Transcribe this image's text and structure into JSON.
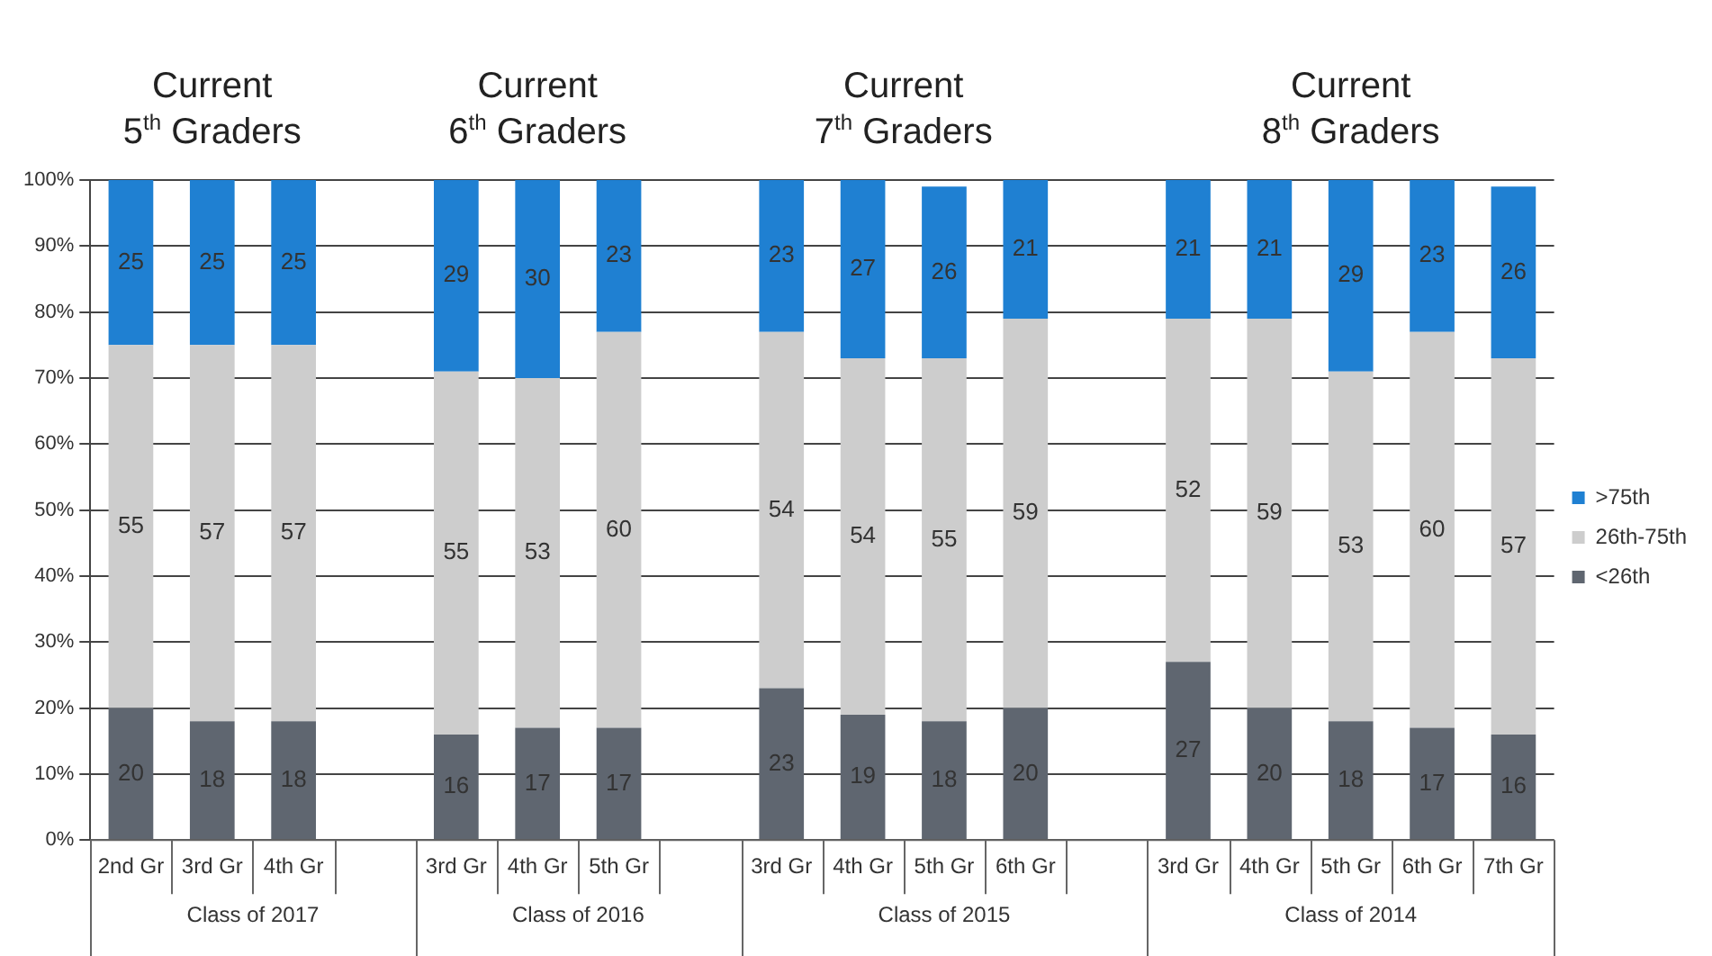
{
  "chart_data": {
    "type": "bar",
    "stacked": true,
    "categories": [
      "2nd Gr",
      "3rd Gr",
      "4th Gr",
      null,
      "3rd Gr",
      "4th Gr",
      "5th Gr",
      null,
      "3rd Gr",
      "4th Gr",
      "5th Gr",
      "6th Gr",
      null,
      "3rd Gr",
      "4th Gr",
      "5th Gr",
      "6th Gr",
      "7th Gr"
    ],
    "series": [
      {
        "name": "<26th",
        "color": "#5f6670",
        "values": [
          20,
          18,
          18,
          null,
          16,
          17,
          17,
          null,
          23,
          19,
          18,
          20,
          null,
          27,
          20,
          18,
          17,
          16
        ]
      },
      {
        "name": "26th-75th",
        "color": "#cdcdcd",
        "values": [
          55,
          57,
          57,
          null,
          55,
          53,
          60,
          null,
          54,
          54,
          55,
          59,
          null,
          52,
          59,
          53,
          60,
          57
        ]
      },
      {
        "name": ">75th",
        "color": "#1f80d2",
        "values": [
          25,
          25,
          25,
          null,
          29,
          30,
          23,
          null,
          23,
          27,
          26,
          21,
          null,
          21,
          21,
          29,
          23,
          26
        ]
      }
    ],
    "ylim": [
      0,
      100
    ],
    "yticks": [
      {
        "value": 0,
        "label": "0%"
      },
      {
        "value": 10,
        "label": "10%"
      },
      {
        "value": 20,
        "label": "20%"
      },
      {
        "value": 30,
        "label": "30%"
      },
      {
        "value": 40,
        "label": "40%"
      },
      {
        "value": 50,
        "label": "50%"
      },
      {
        "value": 60,
        "label": "60%"
      },
      {
        "value": 70,
        "label": "70%"
      },
      {
        "value": 80,
        "label": "80%"
      },
      {
        "value": 90,
        "label": "90%"
      },
      {
        "value": 100,
        "label": "100%"
      }
    ],
    "grid": "y",
    "legend": "right",
    "data_labels": true,
    "annotations": [
      "Current\n5$^{th}$ Graders",
      "Current\n6$^{th}$ Graders",
      "Current\n7$^{th}$ Graders",
      "Current\n8$^{th}$ Graders",
      "Class of 2017",
      "Class of 2016",
      "Class of 2015",
      "Class of 2014"
    ]
  }
}
